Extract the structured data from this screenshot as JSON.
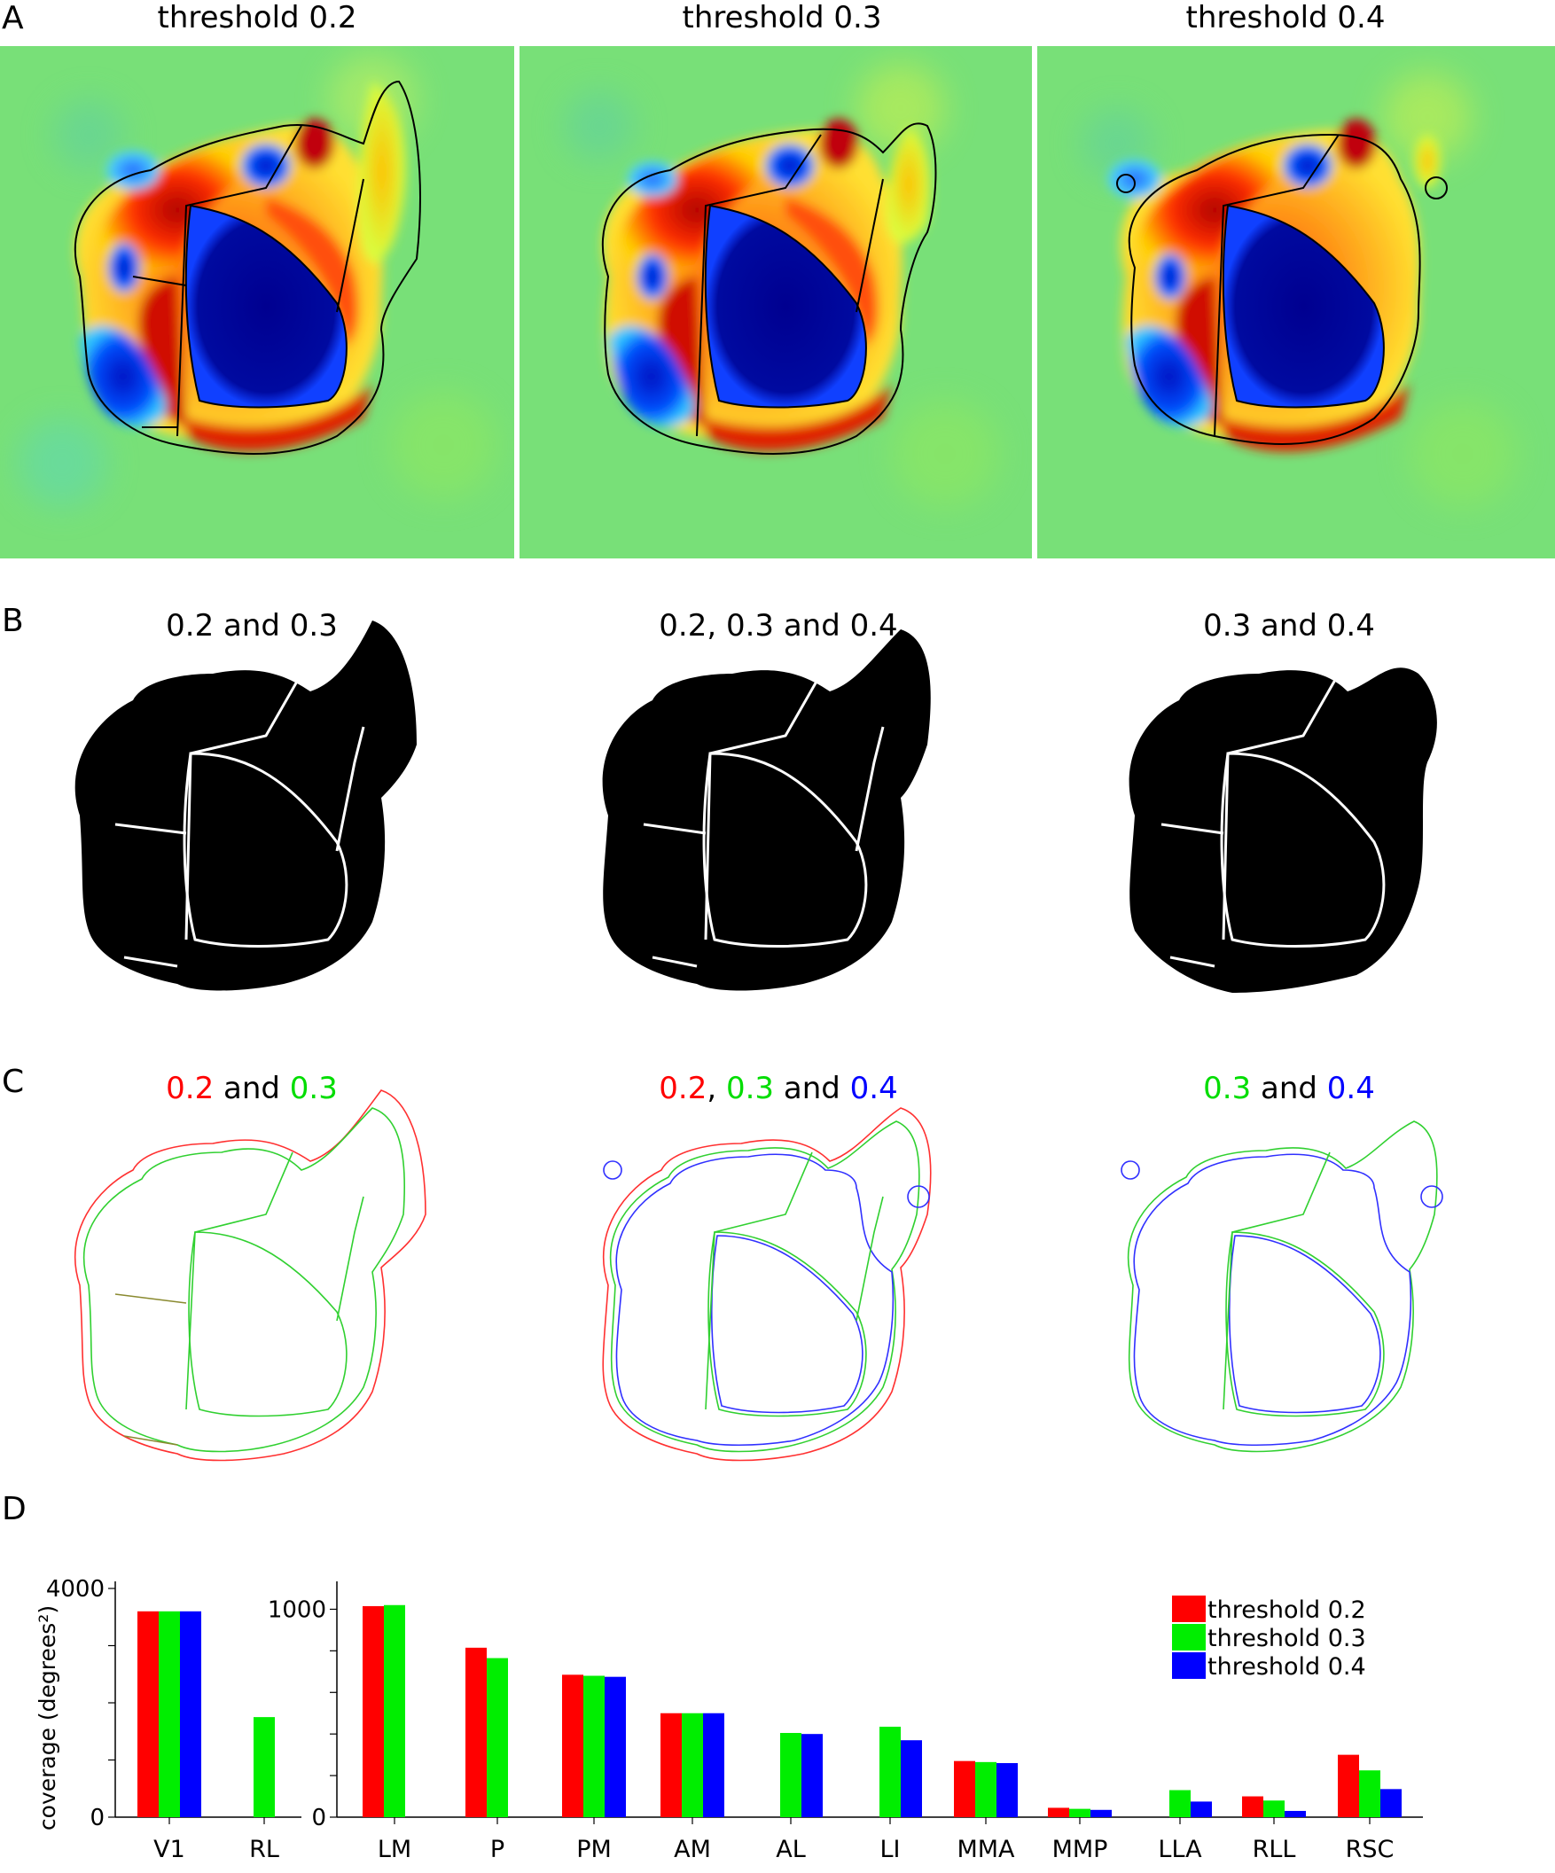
{
  "panels": {
    "A": {
      "letter": "A",
      "titles": [
        "threshold 0.2",
        "threshold 0.3",
        "threshold 0.4"
      ]
    },
    "B": {
      "letter": "B",
      "titles": [
        "0.2 and 0.3",
        "0.2, 0.3 and 0.4",
        "0.3 and 0.4"
      ]
    },
    "C": {
      "letter": "C",
      "titles": [
        [
          {
            "t": "0.2",
            "c": "#ff0000"
          },
          {
            "t": " and ",
            "c": "#000000"
          },
          {
            "t": "0.3",
            "c": "#00dd00"
          }
        ],
        [
          {
            "t": "0.2",
            "c": "#ff0000"
          },
          {
            "t": ", ",
            "c": "#000000"
          },
          {
            "t": "0.3",
            "c": "#00dd00"
          },
          {
            "t": " and ",
            "c": "#000000"
          },
          {
            "t": "0.4",
            "c": "#0000ff"
          }
        ],
        [
          {
            "t": "0.3",
            "c": "#00dd00"
          },
          {
            "t": " and ",
            "c": "#000000"
          },
          {
            "t": "0.4",
            "c": "#0000ff"
          }
        ]
      ]
    },
    "D": {
      "letter": "D"
    }
  },
  "chart_data": {
    "type": "bar",
    "ylabel": "coverage (degrees²)",
    "legend": {
      "placement": "top-right",
      "entries": [
        "threshold 0.2",
        "threshold 0.3",
        "threshold 0.4"
      ]
    },
    "colors": [
      "#ff0000",
      "#00ee00",
      "#0000ff"
    ],
    "left": {
      "categories": [
        "V1",
        "RL"
      ],
      "ylim": [
        0,
        4000
      ],
      "ytick_labels": [
        "0",
        "4000"
      ],
      "series": [
        {
          "name": "threshold 0.2",
          "values": [
            3600,
            null
          ]
        },
        {
          "name": "threshold 0.3",
          "values": [
            3600,
            1750
          ]
        },
        {
          "name": "threshold 0.4",
          "values": [
            3600,
            null
          ]
        }
      ]
    },
    "right": {
      "categories": [
        "LM",
        "P",
        "PM",
        "AM",
        "AL",
        "LI",
        "MMA",
        "MMP",
        "LLA",
        "RLL",
        "RSC"
      ],
      "ylim": [
        0,
        1100
      ],
      "ytick_labels": [
        "0",
        "1000"
      ],
      "series": [
        {
          "name": "threshold 0.2",
          "values": [
            1015,
            815,
            685,
            500,
            null,
            null,
            270,
            45,
            null,
            100,
            300
          ]
        },
        {
          "name": "threshold 0.3",
          "values": [
            1020,
            765,
            680,
            500,
            405,
            435,
            265,
            40,
            130,
            80,
            225
          ]
        },
        {
          "name": "threshold 0.4",
          "values": [
            null,
            null,
            675,
            500,
            400,
            370,
            260,
            35,
            75,
            30,
            135
          ]
        }
      ]
    }
  }
}
